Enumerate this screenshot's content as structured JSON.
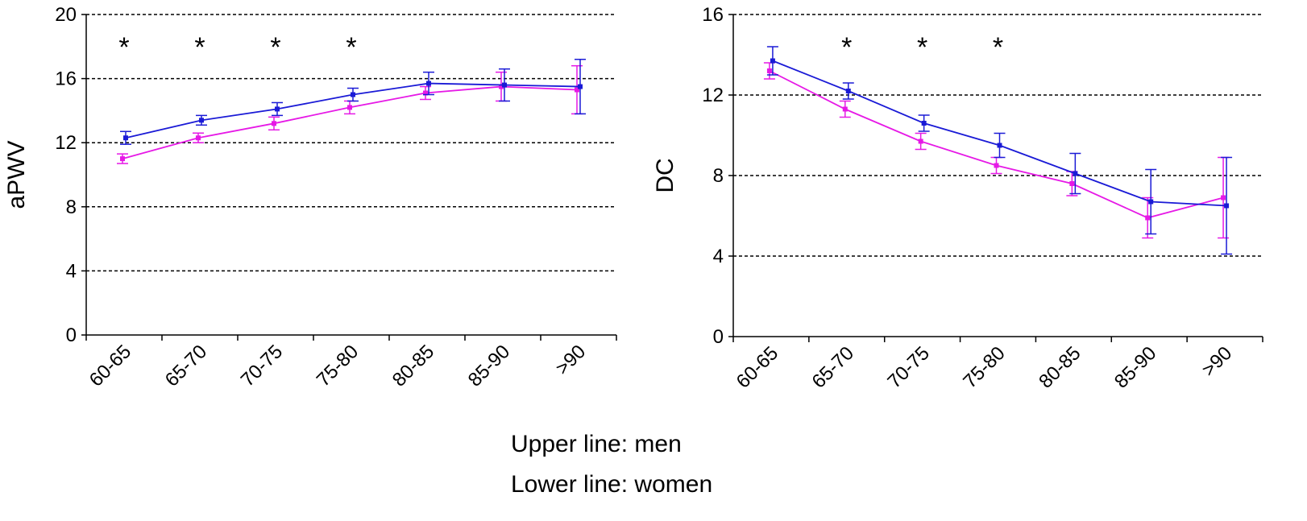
{
  "footnotes": {
    "line1": "Upper line: men",
    "line2": "Lower line: women"
  },
  "colors": {
    "men": "#1a1ad6",
    "women": "#e619e6",
    "axis": "#000000",
    "grid": "#000000"
  },
  "chart_data": [
    {
      "type": "line",
      "ylabel": "aPWV",
      "xlabel": "",
      "ylim": [
        0,
        20
      ],
      "yticks": [
        0,
        4,
        8,
        12,
        16,
        20
      ],
      "grid": "horizontal dashed",
      "categories": [
        "60-65",
        "65-70",
        "70-75",
        "75-80",
        "80-85",
        "85-90",
        ">90"
      ],
      "significance": [
        true,
        true,
        true,
        true,
        false,
        false,
        false
      ],
      "significance_marker": "*",
      "series": [
        {
          "key": "men",
          "values": [
            12.3,
            13.4,
            14.1,
            15.0,
            15.7,
            15.6,
            15.5
          ],
          "error": [
            0.4,
            0.3,
            0.4,
            0.4,
            0.7,
            1.0,
            1.7
          ]
        },
        {
          "key": "women",
          "values": [
            11.0,
            12.3,
            13.2,
            14.2,
            15.1,
            15.5,
            15.3
          ],
          "error": [
            0.3,
            0.3,
            0.4,
            0.4,
            0.4,
            0.9,
            1.5
          ]
        }
      ]
    },
    {
      "type": "line",
      "ylabel": "DC",
      "xlabel": "",
      "ylim": [
        0,
        16
      ],
      "yticks": [
        0,
        4,
        8,
        12,
        16
      ],
      "grid": "horizontal dashed",
      "categories": [
        "60-65",
        "65-70",
        "70-75",
        "75-80",
        "80-85",
        "85-90",
        ">90"
      ],
      "significance": [
        false,
        true,
        true,
        true,
        false,
        false,
        false
      ],
      "significance_marker": "*",
      "series": [
        {
          "key": "men",
          "values": [
            13.7,
            12.2,
            10.6,
            9.5,
            8.1,
            6.7,
            6.5
          ],
          "error": [
            0.7,
            0.4,
            0.4,
            0.6,
            1.0,
            1.6,
            2.4
          ]
        },
        {
          "key": "women",
          "values": [
            13.2,
            11.3,
            9.7,
            8.5,
            7.6,
            5.9,
            6.9
          ],
          "error": [
            0.4,
            0.4,
            0.4,
            0.4,
            0.6,
            1.0,
            2.0
          ]
        }
      ]
    }
  ]
}
